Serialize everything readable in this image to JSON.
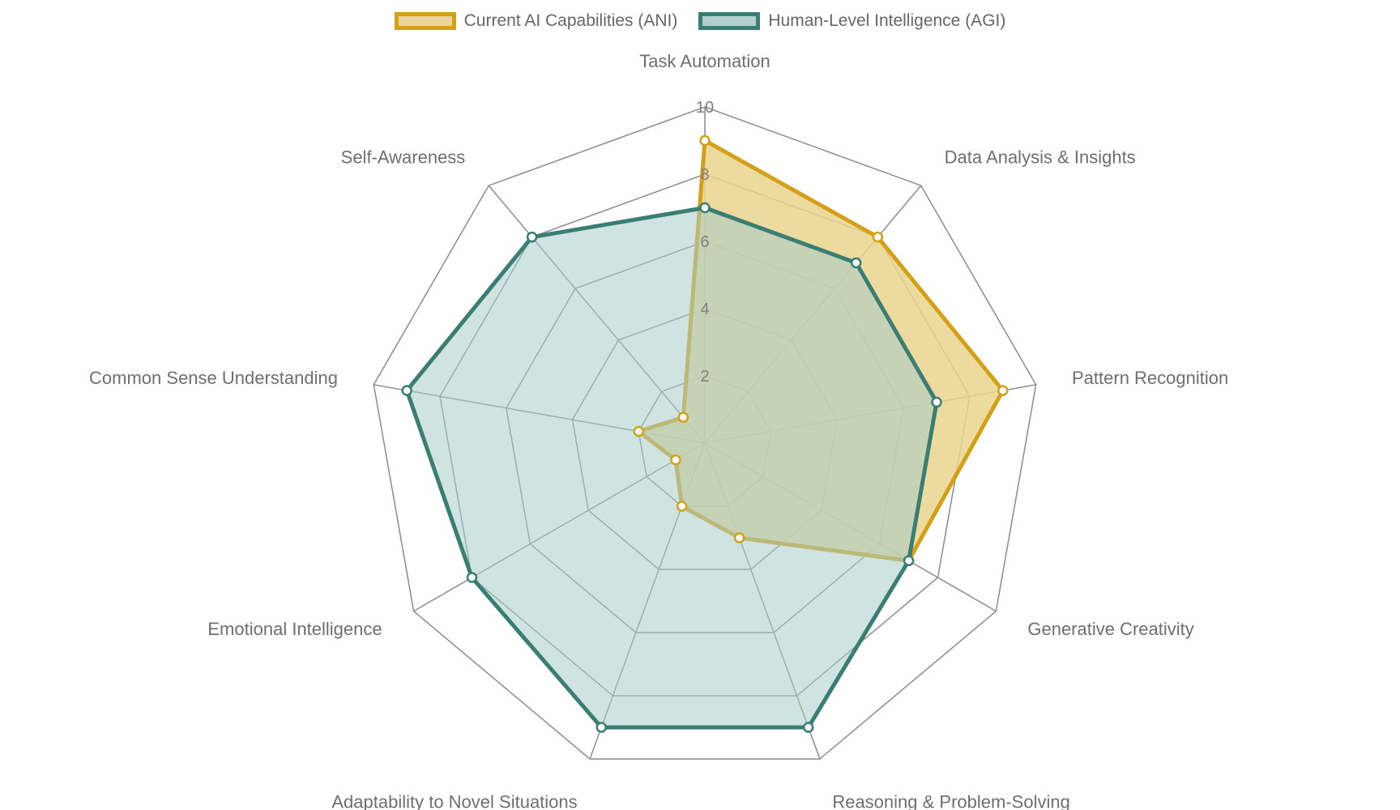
{
  "chart_data": {
    "type": "radar",
    "title": "",
    "axes": [
      "Task Automation",
      "Data Analysis & Insights",
      "Pattern Recognition",
      "Generative Creativity",
      "Reasoning & Problem-Solving",
      "Adaptability to Novel Situations",
      "Emotional Intelligence",
      "Common Sense Understanding",
      "Self-Awareness"
    ],
    "r_range": [
      0,
      10
    ],
    "r_ticks": [
      "2",
      "4",
      "6",
      "8",
      "10"
    ],
    "r_tick_values": [
      2,
      4,
      6,
      8,
      10
    ],
    "grid": true,
    "legend_position": "top",
    "series": [
      {
        "name": "Current AI Capabilities (ANI)",
        "values": [
          9,
          8,
          9,
          7,
          3,
          2,
          1,
          2,
          1
        ],
        "border_color": "#D4A017",
        "fill_color": "#E9D38E",
        "point_fill": "#ffffff"
      },
      {
        "name": "Human-Level Intelligence (AGI)",
        "values": [
          7,
          7,
          7,
          7,
          9,
          9,
          8,
          9,
          8
        ],
        "border_color": "#3A7D72",
        "fill_color": "#A8CCC7",
        "point_fill": "#ffffff"
      }
    ]
  }
}
